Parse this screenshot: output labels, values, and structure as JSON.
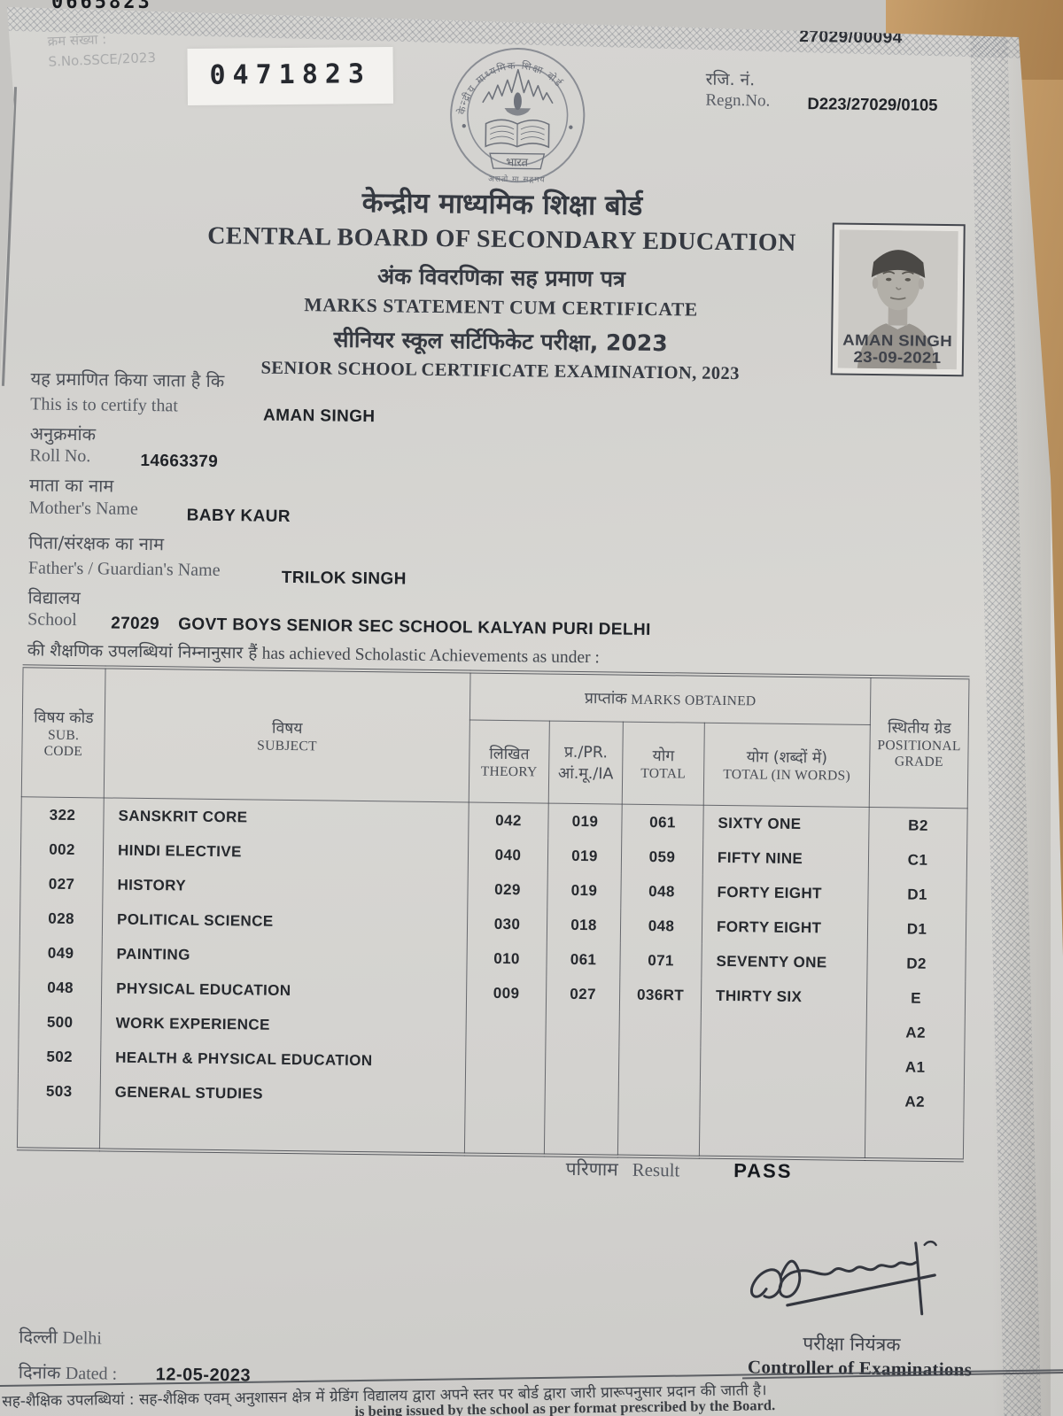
{
  "page": {
    "top_serial_partial": "0665823",
    "center_number": "27029/00094",
    "sno_line1": "क्रम संख्या :",
    "sno_line2": "S.No.SSCE/2023",
    "serial_box": "0471823",
    "regn_label_hi": "रजि. नं.",
    "regn_label_en": "Regn.No.",
    "regn_value": "D223/27029/0105"
  },
  "header": {
    "board_hi": "केन्द्रीय माध्यमिक शिक्षा बोर्ड",
    "board_en": "CENTRAL BOARD OF SECONDARY EDUCATION",
    "doc_hi": "अंक विवरणिका सह प्रमाण पत्र",
    "doc_en": "MARKS STATEMENT CUM CERTIFICATE",
    "exam_hi": "सीनियर स्कूल सर्टिफिकेट परीक्षा, 2023",
    "exam_en": "SENIOR SCHOOL CERTIFICATE EXAMINATION, 2023",
    "logo": {
      "ring_text": "केन्द्रीय माध्यमिक शिक्षा बोर्ड",
      "country": "भारत",
      "motto": "असतो मा सद्गमय"
    }
  },
  "photo": {
    "name": "AMAN SINGH",
    "date": "23-09-2021"
  },
  "student": {
    "certify_hi": "यह प्रमाणित किया जाता है कि",
    "certify_en": "This is to certify that",
    "name": "AMAN SINGH",
    "roll_hi": "अनुक्रमांक",
    "roll_en": "Roll No.",
    "roll_no": "14663379",
    "mother_hi": "माता का नाम",
    "mother_en": "Mother's Name",
    "mother_name": "BABY KAUR",
    "father_hi": "पिता/संरक्षक का नाम",
    "father_en": "Father's / Guardian's Name",
    "father_name": "TRILOK SINGH",
    "school_hi": "विद्यालय",
    "school_en": "School",
    "school_code": "27029",
    "school_name": "GOVT BOYS SENIOR SEC SCHOOL KALYAN PURI DELHI",
    "achievement_hi": "की शैक्षणिक उपलब्धियां निम्नानुसार हैं",
    "achievement_en": "has achieved Scholastic Achievements as under :"
  },
  "table": {
    "headers": {
      "code_hi": "विषय कोड",
      "code_en1": "SUB.",
      "code_en2": "CODE",
      "subject_hi": "विषय",
      "subject_en": "SUBJECT",
      "marks_hi": "प्राप्तांक",
      "marks_en": "MARKS OBTAINED",
      "theory_hi": "लिखित",
      "theory_en": "THEORY",
      "pr_hi": "प्र./PR.",
      "pr_en": "आं.मू./IA",
      "total_hi": "योग",
      "total_en": "TOTAL",
      "words_hi": "योग (शब्दों में)",
      "words_en": "TOTAL (IN WORDS)",
      "grade_hi": "स्थितीय ग्रेड",
      "grade_en1": "POSITIONAL",
      "grade_en2": "GRADE"
    },
    "rows": [
      {
        "code": "322",
        "subject": "SANSKRIT CORE",
        "theory": "042",
        "pr_ia": "019",
        "total": "061",
        "words": "SIXTY ONE",
        "grade": "B2"
      },
      {
        "code": "002",
        "subject": "HINDI ELECTIVE",
        "theory": "040",
        "pr_ia": "019",
        "total": "059",
        "words": "FIFTY NINE",
        "grade": "C1"
      },
      {
        "code": "027",
        "subject": "HISTORY",
        "theory": "029",
        "pr_ia": "019",
        "total": "048",
        "words": "FORTY EIGHT",
        "grade": "D1"
      },
      {
        "code": "028",
        "subject": "POLITICAL SCIENCE",
        "theory": "030",
        "pr_ia": "018",
        "total": "048",
        "words": "FORTY EIGHT",
        "grade": "D1"
      },
      {
        "code": "049",
        "subject": "PAINTING",
        "theory": "010",
        "pr_ia": "061",
        "total": "071",
        "words": "SEVENTY ONE",
        "grade": "D2"
      },
      {
        "code": "048",
        "subject": "PHYSICAL EDUCATION",
        "theory": "009",
        "pr_ia": "027",
        "total": "036RT",
        "words": "THIRTY SIX",
        "grade": "E"
      },
      {
        "code": "500",
        "subject": "WORK EXPERIENCE",
        "theory": "",
        "pr_ia": "",
        "total": "",
        "words": "",
        "grade": "A2"
      },
      {
        "code": "502",
        "subject": "HEALTH & PHYSICAL EDUCATION",
        "theory": "",
        "pr_ia": "",
        "total": "",
        "words": "",
        "grade": "A1"
      },
      {
        "code": "503",
        "subject": "GENERAL STUDIES",
        "theory": "",
        "pr_ia": "",
        "total": "",
        "words": "",
        "grade": "A2"
      }
    ]
  },
  "result": {
    "label_hi": "परिणाम",
    "label_en": "Result",
    "value": "PASS"
  },
  "footer": {
    "place_hi": "दिल्ली",
    "place_en": "Delhi",
    "date_label_hi": "दिनांक",
    "date_label_en": "Dated :",
    "date_value": "12-05-2023",
    "controller_hi": "परीक्षा नियंत्रक",
    "controller_en": "Controller of Examinations",
    "note_hi": "सह-शैक्षिक उपलब्धियां : सह-शैक्षिक एवम् अनुशासन क्षेत्र में ग्रेडिंग विद्यालय द्वारा अपने स्तर पर बोर्ड द्वारा जारी प्रारूपनुसार प्रदान की जाती है।",
    "note_en_partial": "is being issued by the school as per format prescribed by the Board."
  },
  "colors": {
    "paper": "#d6d5d2",
    "desk": "#b9925f",
    "ink": "#26292e",
    "faded_print": "#55585f"
  }
}
